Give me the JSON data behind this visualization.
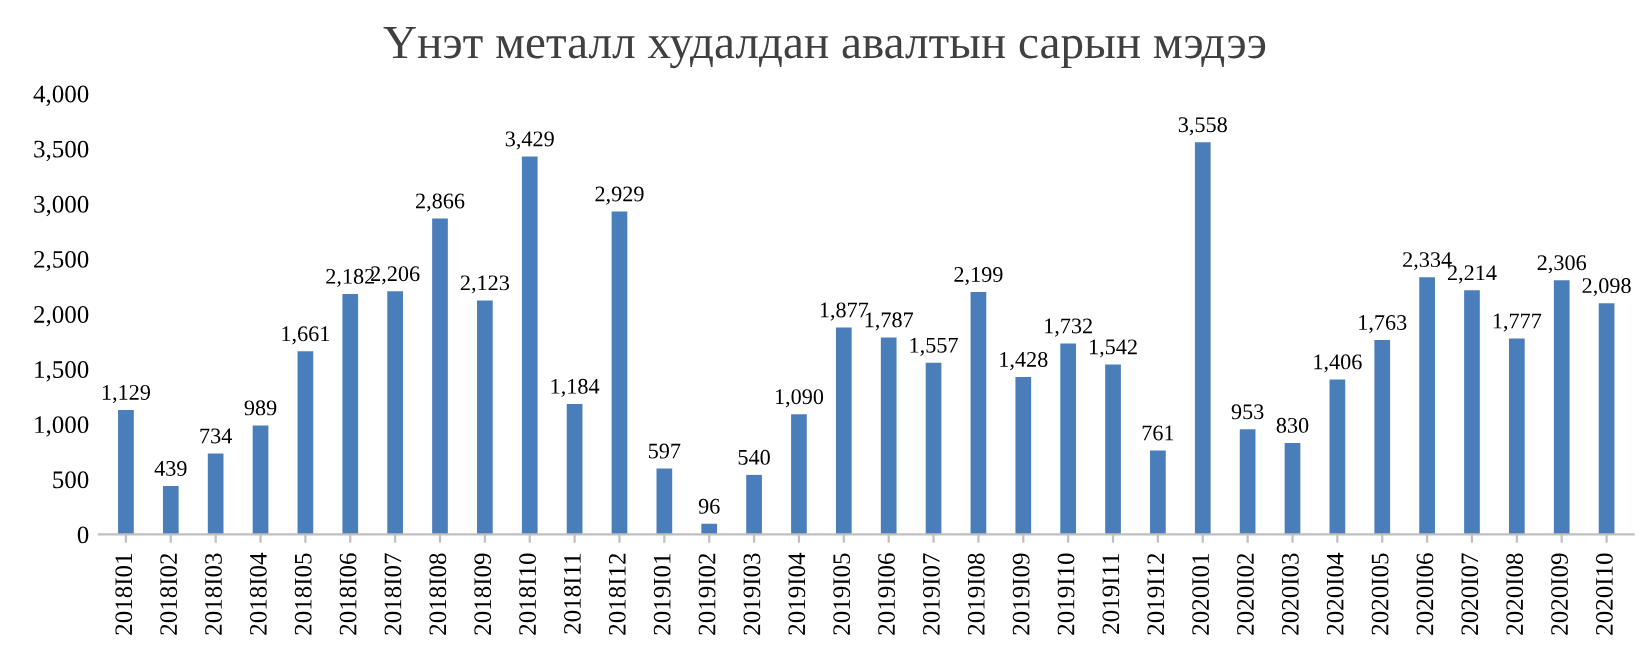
{
  "chart_data": {
    "type": "bar",
    "title": "Үнэт металл худалдан авалтын сарын мэдээ",
    "categories": [
      "2018I01",
      "2018I02",
      "2018I03",
      "2018I04",
      "2018I05",
      "2018I06",
      "2018I07",
      "2018I08",
      "2018I09",
      "2018I10",
      "2018I11",
      "2018I12",
      "2019I01",
      "2019I02",
      "2019I03",
      "2019I04",
      "2019I05",
      "2019I06",
      "2019I07",
      "2019I08",
      "2019I09",
      "2019I10",
      "2019I11",
      "2019I12",
      "2020I01",
      "2020I02",
      "2020I03",
      "2020I04",
      "2020I05",
      "2020I06",
      "2020I07",
      "2020I08",
      "2020I09",
      "2020I10"
    ],
    "values": [
      1129,
      439,
      734,
      989,
      1661,
      2182,
      2206,
      2866,
      2123,
      3429,
      1184,
      2929,
      597,
      96,
      540,
      1090,
      1877,
      1787,
      1557,
      2199,
      1428,
      1732,
      1542,
      761,
      3558,
      953,
      830,
      1406,
      1763,
      2334,
      2214,
      1777,
      2306,
      2098
    ],
    "color": "#4a7ebb",
    "value_labels": [
      "1,129",
      "439",
      "734",
      "989",
      "1,661",
      "2,182",
      "2,206",
      "2,866",
      "2,123",
      "3,429",
      "1,184",
      "2,929",
      "597",
      "96",
      "540",
      "1,090",
      "1,877",
      "1,787",
      "1,557",
      "2,199",
      "1,428",
      "1,732",
      "1,542",
      "761",
      "3,558",
      "953",
      "830",
      "1,406",
      "1,763",
      "2,334",
      "2,214",
      "1,777",
      "2,306",
      "2,098"
    ],
    "ylim": [
      0,
      4000
    ],
    "yticks": [
      {
        "value": 0,
        "label": "0"
      },
      {
        "value": 500,
        "label": "500"
      },
      {
        "value": 1000,
        "label": "1,000"
      },
      {
        "value": 1500,
        "label": "1,500"
      },
      {
        "value": 2000,
        "label": "2,000"
      },
      {
        "value": 2500,
        "label": "2,500"
      },
      {
        "value": 3000,
        "label": "3,000"
      },
      {
        "value": 3500,
        "label": "3,500"
      },
      {
        "value": 4000,
        "label": "4,000"
      }
    ],
    "grid": false
  }
}
